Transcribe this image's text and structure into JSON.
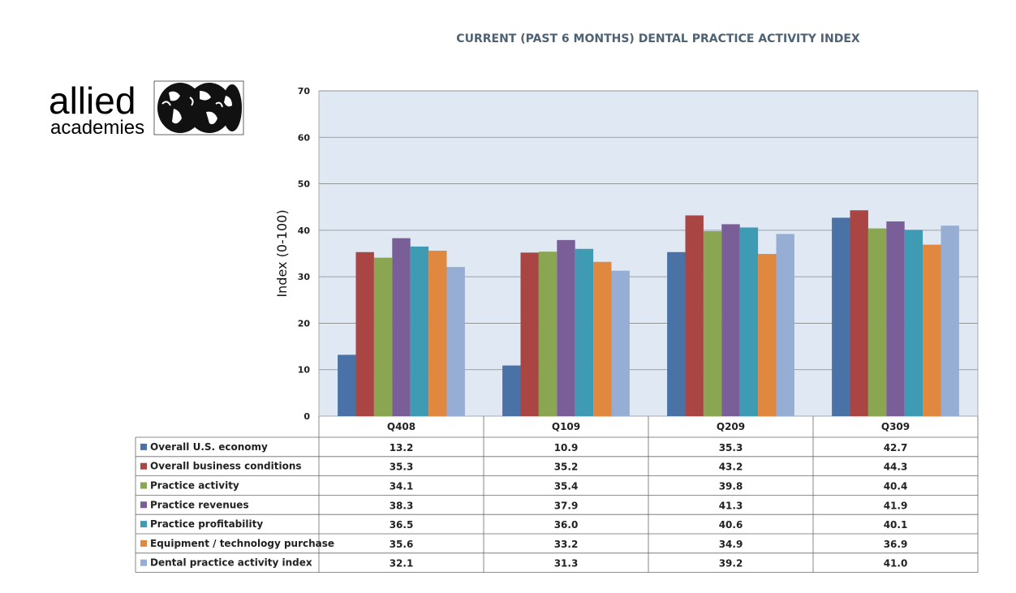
{
  "chart_data": {
    "type": "bar",
    "title": "CURRENT (PAST 6 MONTHS) DENTAL PRACTICE ACTIVITY INDEX",
    "ylabel": "Index (0-100)",
    "xlabel": "",
    "ylim": [
      0,
      70
    ],
    "yticks": [
      0,
      10,
      20,
      30,
      40,
      50,
      60,
      70
    ],
    "grid": true,
    "legend": "data-table",
    "categories": [
      "Q408",
      "Q109",
      "Q209",
      "Q309"
    ],
    "series": [
      {
        "name": "Overall U.S. economy",
        "color": "#4a72a6",
        "values": [
          13.2,
          10.9,
          35.3,
          42.7
        ],
        "labels": [
          "13.2",
          "10.9",
          "35.3",
          "42.7"
        ]
      },
      {
        "name": "Overall business conditions",
        "color": "#a94543",
        "values": [
          35.3,
          35.2,
          43.2,
          44.3
        ],
        "labels": [
          "35.3",
          "35.2",
          "43.2",
          "44.3"
        ]
      },
      {
        "name": "Practice activity",
        "color": "#8aa653",
        "values": [
          34.1,
          35.4,
          39.8,
          40.4
        ],
        "labels": [
          "34.1",
          "35.4",
          "39.8",
          "40.4"
        ]
      },
      {
        "name": "Practice revenues",
        "color": "#7a5e98",
        "values": [
          38.3,
          37.9,
          41.3,
          41.9
        ],
        "labels": [
          "38.3",
          "37.9",
          "41.3",
          "41.9"
        ]
      },
      {
        "name": "Practice profitability",
        "color": "#3e9bb3",
        "values": [
          36.5,
          36.0,
          40.6,
          40.1
        ],
        "labels": [
          "36.5",
          "36.0",
          "40.6",
          "40.1"
        ]
      },
      {
        "name": "Equipment / technology purchase",
        "color": "#e08840",
        "values": [
          35.6,
          33.2,
          34.9,
          36.9
        ],
        "labels": [
          "35.6",
          "33.2",
          "34.9",
          "36.9"
        ]
      },
      {
        "name": "Dental practice activity index",
        "color": "#97aed4",
        "values": [
          32.1,
          31.3,
          39.2,
          41.0
        ],
        "labels": [
          "32.1",
          "31.3",
          "39.2",
          "41.0"
        ]
      }
    ],
    "colors": {
      "plot_background": "#dfe8f3",
      "gridline": "#8a8a8a",
      "title": "#4d6275"
    }
  },
  "logo": {
    "line1": "allied",
    "line2": "academies",
    "icon": "globe-icon"
  }
}
